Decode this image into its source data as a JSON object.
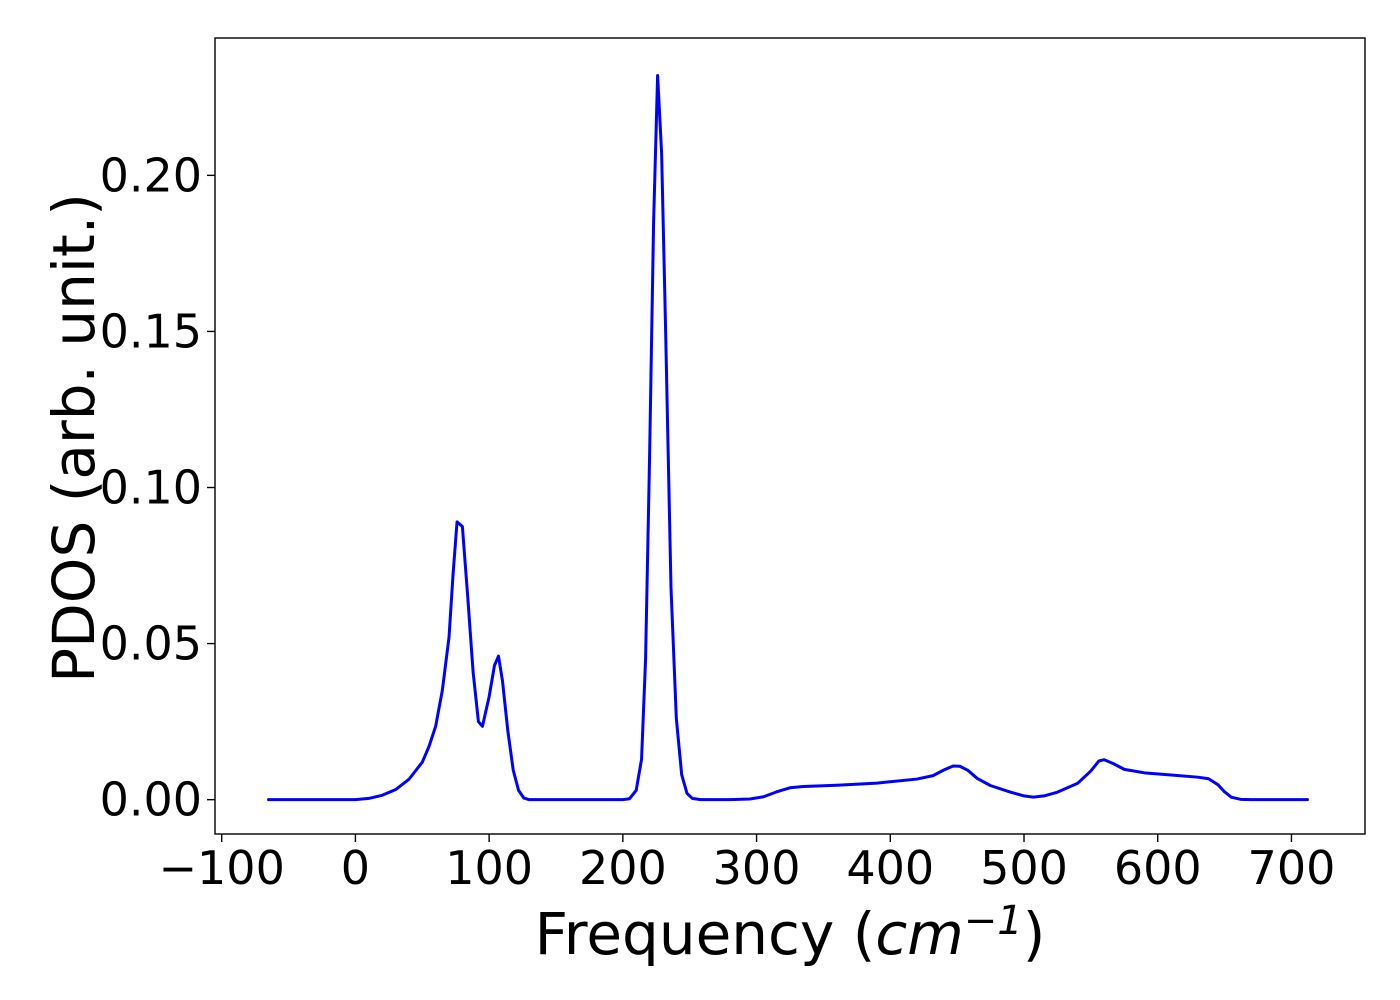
{
  "chart_data": {
    "type": "line",
    "title": "",
    "xlabel": {
      "prefix": "Frequency (",
      "unit": "cm",
      "exponent": "−1",
      "suffix": ")"
    },
    "ylabel": "PDOS (arb. unit.)",
    "xlim": [
      -105,
      755
    ],
    "ylim": [
      -0.011,
      0.244
    ],
    "xticks": [
      -100,
      0,
      100,
      200,
      300,
      400,
      500,
      600,
      700
    ],
    "xtick_labels": [
      "−100",
      "0",
      "100",
      "200",
      "300",
      "400",
      "500",
      "600",
      "700"
    ],
    "yticks": [
      0.0,
      0.05,
      0.1,
      0.15,
      0.2
    ],
    "ytick_labels": [
      "0.00",
      "0.05",
      "0.10",
      "0.15",
      "0.20"
    ],
    "grid": false,
    "series": [
      {
        "color": "#0000ff",
        "points": [
          [
            -65,
            0.0
          ],
          [
            0,
            0.0
          ],
          [
            10,
            0.0004
          ],
          [
            20,
            0.0014
          ],
          [
            30,
            0.0032
          ],
          [
            40,
            0.0065
          ],
          [
            50,
            0.012
          ],
          [
            55,
            0.017
          ],
          [
            60,
            0.0235
          ],
          [
            65,
            0.035
          ],
          [
            70,
            0.052
          ],
          [
            73,
            0.072
          ],
          [
            76,
            0.089
          ],
          [
            80,
            0.0875
          ],
          [
            84,
            0.065
          ],
          [
            88,
            0.041
          ],
          [
            92,
            0.025
          ],
          [
            95,
            0.0235
          ],
          [
            100,
            0.033
          ],
          [
            104,
            0.043
          ],
          [
            107,
            0.046
          ],
          [
            110,
            0.038
          ],
          [
            114,
            0.022
          ],
          [
            118,
            0.0095
          ],
          [
            122,
            0.003
          ],
          [
            126,
            0.0005
          ],
          [
            130,
            0.0
          ],
          [
            140,
            0.0
          ],
          [
            200,
            0.0
          ],
          [
            205,
            0.0003
          ],
          [
            210,
            0.003
          ],
          [
            214,
            0.013
          ],
          [
            217,
            0.045
          ],
          [
            220,
            0.11
          ],
          [
            223,
            0.185
          ],
          [
            226,
            0.232
          ],
          [
            229,
            0.207
          ],
          [
            232,
            0.15
          ],
          [
            236,
            0.068
          ],
          [
            240,
            0.026
          ],
          [
            244,
            0.008
          ],
          [
            248,
            0.002
          ],
          [
            252,
            0.0004
          ],
          [
            258,
            0.0
          ],
          [
            280,
            0.0
          ],
          [
            295,
            0.0002
          ],
          [
            305,
            0.0009
          ],
          [
            315,
            0.0025
          ],
          [
            325,
            0.0038
          ],
          [
            335,
            0.0042
          ],
          [
            360,
            0.0046
          ],
          [
            390,
            0.0053
          ],
          [
            420,
            0.0066
          ],
          [
            432,
            0.0077
          ],
          [
            440,
            0.0095
          ],
          [
            447,
            0.0108
          ],
          [
            452,
            0.0107
          ],
          [
            458,
            0.0094
          ],
          [
            465,
            0.0068
          ],
          [
            475,
            0.0045
          ],
          [
            490,
            0.0024
          ],
          [
            500,
            0.0012
          ],
          [
            507,
            0.0008
          ],
          [
            515,
            0.0012
          ],
          [
            525,
            0.0024
          ],
          [
            540,
            0.0052
          ],
          [
            550,
            0.0092
          ],
          [
            556,
            0.0124
          ],
          [
            560,
            0.0128
          ],
          [
            567,
            0.0115
          ],
          [
            575,
            0.0097
          ],
          [
            590,
            0.0086
          ],
          [
            610,
            0.0079
          ],
          [
            630,
            0.0072
          ],
          [
            638,
            0.0067
          ],
          [
            645,
            0.0048
          ],
          [
            650,
            0.0025
          ],
          [
            655,
            0.0008
          ],
          [
            662,
            0.0001
          ],
          [
            670,
            0.0
          ],
          [
            712,
            0.0
          ]
        ]
      }
    ]
  }
}
